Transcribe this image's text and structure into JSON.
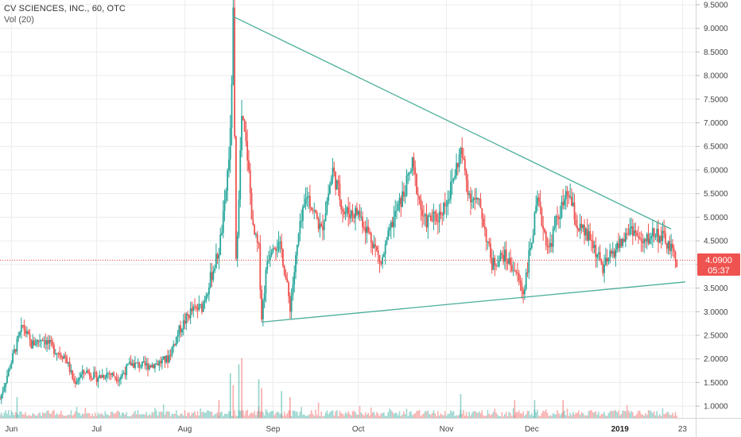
{
  "header": {
    "title": "CV SCIENCES, INC., 60, OTC",
    "volume_label": "Vol (20)"
  },
  "price_tag": {
    "value": "4.0900",
    "countdown": "05:37"
  },
  "colors": {
    "up": "#26a69a",
    "down": "#ef5350",
    "trendline": "#4caf9a",
    "price_line": "#e53935",
    "tag_bg": "#ef5350",
    "grid": "#ececec"
  },
  "chart_data": {
    "type": "candlestick",
    "title": "CV SCIENCES, INC., 60, OTC",
    "y_axis": {
      "min": 0.75,
      "max": 9.6,
      "ticks": [
        "1.0000",
        "1.5000",
        "2.0000",
        "2.5000",
        "3.0000",
        "3.5000",
        "4.0000",
        "4.5000",
        "5.0000",
        "5.5000",
        "6.0000",
        "6.5000",
        "7.0000",
        "7.5000",
        "8.0000",
        "8.5000",
        "9.0000",
        "9.5000"
      ]
    },
    "x_axis": {
      "start": "2018-05-28",
      "end": "2019-01-24",
      "ticks": [
        {
          "label": "Jun",
          "date": "2018-06-01"
        },
        {
          "label": "Jul",
          "date": "2018-07-01"
        },
        {
          "label": "Aug",
          "date": "2018-08-01"
        },
        {
          "label": "Sep",
          "date": "2018-09-01"
        },
        {
          "label": "Oct",
          "date": "2018-10-01"
        },
        {
          "label": "Nov",
          "date": "2018-11-01"
        },
        {
          "label": "Dec",
          "date": "2018-12-01"
        },
        {
          "label": "2019",
          "date": "2019-01-01",
          "bold": true
        },
        {
          "label": "23",
          "date": "2019-01-23"
        }
      ]
    },
    "price_path": [
      [
        "2018-05-28",
        1.15
      ],
      [
        "2018-06-02",
        2.15
      ],
      [
        "2018-06-05",
        2.7
      ],
      [
        "2018-06-08",
        2.3
      ],
      [
        "2018-06-12",
        2.45
      ],
      [
        "2018-06-16",
        2.2
      ],
      [
        "2018-06-20",
        2.05
      ],
      [
        "2018-06-23",
        1.5
      ],
      [
        "2018-06-27",
        1.75
      ],
      [
        "2018-07-01",
        1.6
      ],
      [
        "2018-07-05",
        1.7
      ],
      [
        "2018-07-09",
        1.6
      ],
      [
        "2018-07-13",
        1.9
      ],
      [
        "2018-07-18",
        1.85
      ],
      [
        "2018-07-22",
        1.9
      ],
      [
        "2018-07-26",
        2.0
      ],
      [
        "2018-07-30",
        2.6
      ],
      [
        "2018-08-03",
        3.0
      ],
      [
        "2018-08-07",
        3.1
      ],
      [
        "2018-08-10",
        3.7
      ],
      [
        "2018-08-13",
        4.3
      ],
      [
        "2018-08-15",
        5.2
      ],
      [
        "2018-08-17",
        6.7
      ],
      [
        "2018-08-18",
        9.2
      ],
      [
        "2018-08-19",
        4.0
      ],
      [
        "2018-08-21",
        7.1
      ],
      [
        "2018-08-23",
        6.3
      ],
      [
        "2018-08-25",
        4.7
      ],
      [
        "2018-08-27",
        4.3
      ],
      [
        "2018-08-28",
        2.9
      ],
      [
        "2018-08-30",
        4.1
      ],
      [
        "2018-09-01",
        4.5
      ],
      [
        "2018-09-04",
        4.3
      ],
      [
        "2018-09-07",
        3.1
      ],
      [
        "2018-09-10",
        4.6
      ],
      [
        "2018-09-13",
        5.5
      ],
      [
        "2018-09-18",
        4.7
      ],
      [
        "2018-09-22",
        6.0
      ],
      [
        "2018-09-26",
        5.1
      ],
      [
        "2018-10-01",
        5.1
      ],
      [
        "2018-10-06",
        4.5
      ],
      [
        "2018-10-09",
        4.0
      ],
      [
        "2018-10-13",
        4.9
      ],
      [
        "2018-10-17",
        5.5
      ],
      [
        "2018-10-20",
        6.1
      ],
      [
        "2018-10-24",
        4.9
      ],
      [
        "2018-10-29",
        5.0
      ],
      [
        "2018-11-02",
        5.5
      ],
      [
        "2018-11-06",
        6.4
      ],
      [
        "2018-11-09",
        5.5
      ],
      [
        "2018-11-13",
        5.2
      ],
      [
        "2018-11-17",
        4.0
      ],
      [
        "2018-11-21",
        4.2
      ],
      [
        "2018-11-25",
        3.9
      ],
      [
        "2018-11-28",
        3.4
      ],
      [
        "2018-12-03",
        5.3
      ],
      [
        "2018-12-07",
        4.3
      ],
      [
        "2018-12-10",
        5.0
      ],
      [
        "2018-12-14",
        5.5
      ],
      [
        "2018-12-17",
        4.8
      ],
      [
        "2018-12-22",
        4.5
      ],
      [
        "2018-12-26",
        3.9
      ],
      [
        "2018-12-30",
        4.3
      ],
      [
        "2019-01-02",
        4.5
      ],
      [
        "2019-01-05",
        4.8
      ],
      [
        "2019-01-09",
        4.4
      ],
      [
        "2019-01-13",
        4.7
      ],
      [
        "2019-01-17",
        4.5
      ],
      [
        "2019-01-21",
        4.09
      ]
    ],
    "trendlines": [
      {
        "name": "upper",
        "from": [
          "2018-08-18",
          9.25
        ],
        "to": [
          "2019-01-19",
          4.75
        ]
      },
      {
        "name": "lower",
        "from": [
          "2018-08-28",
          2.78
        ],
        "to": [
          "2019-01-24",
          3.63
        ]
      }
    ],
    "volume_spikes": [
      [
        "2018-06-03",
        0.35
      ],
      [
        "2018-08-13",
        0.3
      ],
      [
        "2018-08-17",
        0.75
      ],
      [
        "2018-08-18",
        0.55
      ],
      [
        "2018-08-20",
        0.9
      ],
      [
        "2018-08-21",
        1.0
      ],
      [
        "2018-08-27",
        0.65
      ],
      [
        "2018-08-28",
        0.5
      ],
      [
        "2018-09-04",
        0.45
      ],
      [
        "2018-09-07",
        0.35
      ],
      [
        "2018-11-06",
        0.4
      ],
      [
        "2018-11-25",
        0.3
      ],
      [
        "2018-12-02",
        0.3
      ],
      [
        "2018-12-12",
        0.3
      ]
    ],
    "last_price": 4.09
  }
}
